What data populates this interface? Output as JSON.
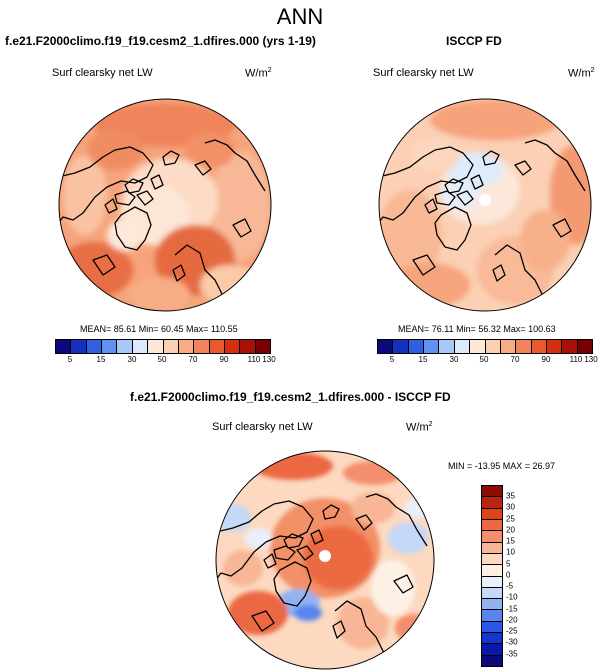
{
  "page_title": "ANN",
  "panels": [
    {
      "title": "f.e21.F2000climo.f19_f19.cesm2_1.dfires.000 (yrs 1-19)",
      "variable": "Surf clearsky net LW",
      "units_base": "W/m",
      "units_exp": "2",
      "stats": "MEAN=  85.61  Min=  60.45  Max=  110.55"
    },
    {
      "title": "ISCCP FD",
      "variable": "Surf clearsky net LW",
      "units_base": "W/m",
      "units_exp": "2",
      "stats": "MEAN=  76.11  Min=  56.32  Max=  100.63"
    }
  ],
  "diff_panel": {
    "title": "f.e21.F2000climo.f19_f19.cesm2_1.dfires.000 - ISCCP FD",
    "variable": "Surf clearsky net LW",
    "units_base": "W/m",
    "units_exp": "2",
    "stats": "MIN = -13.95 MAX =  26.97"
  },
  "colorbar_main": {
    "colors": [
      "#0a0a7a",
      "#1530c0",
      "#3060e0",
      "#6090f0",
      "#a8c8f5",
      "#dce9fa",
      "#fde8d8",
      "#fbcfb2",
      "#f7ac86",
      "#f2835a",
      "#e85a2e",
      "#d43010",
      "#a81008",
      "#780004"
    ],
    "ticks": [
      "5",
      "15",
      "30",
      "50",
      "70",
      "90",
      "110",
      "130"
    ]
  },
  "colorbar_diff": {
    "colors": [
      "#0a0a7a",
      "#0a1aa8",
      "#1535d0",
      "#2a55e8",
      "#5a85ef",
      "#92b2f2",
      "#c4d8f7",
      "#e8f0fb",
      "#fdf1e5",
      "#fcd9c0",
      "#f8b696",
      "#f48e6c",
      "#ec6842",
      "#dc4418",
      "#bb2410",
      "#8a0c05"
    ],
    "ticks": [
      "35",
      "30",
      "25",
      "20",
      "15",
      "10",
      "5",
      "0",
      "-5",
      "-10",
      "-15",
      "-20",
      "-25",
      "-30",
      "-35"
    ]
  }
}
